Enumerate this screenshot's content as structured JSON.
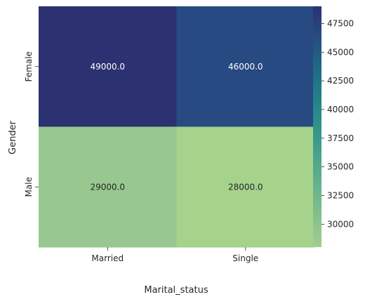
{
  "chart_data": {
    "type": "heatmap",
    "title": "",
    "xlabel": "Marital_status",
    "ylabel": "Gender",
    "x_categories": [
      "Married",
      "Single"
    ],
    "y_categories": [
      "Female",
      "Male"
    ],
    "values": [
      [
        49000.0,
        46000.0
      ],
      [
        29000.0,
        28000.0
      ]
    ],
    "value_labels": [
      [
        "49000.0",
        "46000.0"
      ],
      [
        "29000.0",
        "28000.0"
      ]
    ],
    "colormap": "crest",
    "colorbar": {
      "range": [
        28000,
        49000
      ],
      "ticks": [
        30000,
        32500,
        35000,
        37500,
        40000,
        42500,
        45000,
        47500
      ],
      "tick_labels": [
        "30000",
        "32500",
        "35000",
        "37500",
        "40000",
        "42500",
        "45000",
        "47500"
      ]
    },
    "cell_colors": [
      [
        "#2c3172",
        "#264a81"
      ],
      [
        "#98c890",
        "#a5d38c"
      ]
    ],
    "grid": false,
    "legend": "colorbar-right"
  }
}
